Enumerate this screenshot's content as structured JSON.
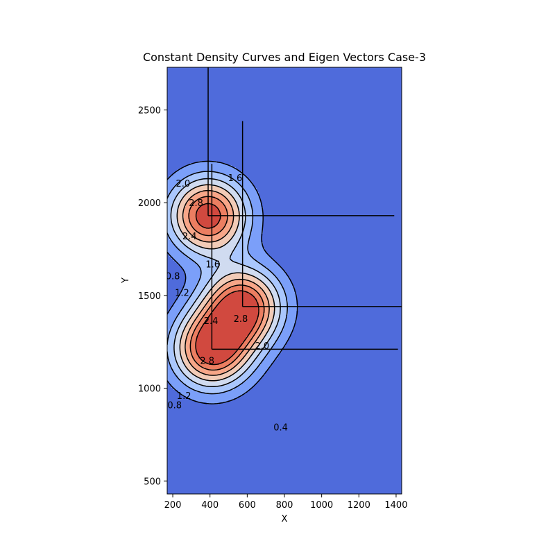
{
  "chart_data": {
    "type": "contour",
    "title": "Constant Density Curves and Eigen Vectors Case-3",
    "xlabel": "X",
    "ylabel": "Y",
    "xlim": [
      170,
      1430
    ],
    "ylim": [
      430,
      2730
    ],
    "x_ticks": [
      200,
      400,
      600,
      800,
      1000,
      1200,
      1400
    ],
    "y_ticks": [
      500,
      1000,
      1500,
      2000,
      2500
    ],
    "grid": false,
    "legend": "none",
    "colormap": "coolwarm",
    "contour_levels": [
      0.4,
      0.8,
      1.2,
      1.6,
      2.0,
      2.4,
      2.8
    ],
    "fill_colors": [
      "#4f6bdb",
      "#7b9ff9",
      "#aac7fd",
      "#d0dbf0",
      "#f2cbb7",
      "#f7a688",
      "#ec7e61",
      "#d1493f"
    ],
    "clusters": [
      {
        "name": "",
        "mean": [
          390,
          1930
        ],
        "sigma": 145,
        "eigen_vectors": [
          [
            0,
            1
          ],
          [
            1,
            0
          ]
        ],
        "eigen_length": 1000
      },
      {
        "name": "",
        "mean": [
          575,
          1440
        ],
        "sigma": 145,
        "eigen_vectors": [
          [
            0,
            1
          ],
          [
            1,
            0
          ]
        ],
        "eigen_length": 1000
      },
      {
        "name": "",
        "mean": [
          410,
          1210
        ],
        "sigma": 145,
        "eigen_vectors": [
          [
            0,
            1
          ],
          [
            1,
            0
          ]
        ],
        "eigen_length": 1000
      }
    ],
    "contour_labels": [
      {
        "text": "2.0",
        "x": 255,
        "y": 2100
      },
      {
        "text": "1.6",
        "x": 535,
        "y": 2130
      },
      {
        "text": "2.8",
        "x": 325,
        "y": 1995
      },
      {
        "text": "2.4",
        "x": 290,
        "y": 1815
      },
      {
        "text": "1.6",
        "x": 415,
        "y": 1665
      },
      {
        "text": "0.8",
        "x": 200,
        "y": 1600
      },
      {
        "text": "1.2",
        "x": 250,
        "y": 1510
      },
      {
        "text": "2.4",
        "x": 405,
        "y": 1360
      },
      {
        "text": "2.8",
        "x": 565,
        "y": 1370
      },
      {
        "text": "2.0",
        "x": 680,
        "y": 1225
      },
      {
        "text": "2.8",
        "x": 385,
        "y": 1145
      },
      {
        "text": "1.2",
        "x": 260,
        "y": 955
      },
      {
        "text": "0.8",
        "x": 210,
        "y": 905
      },
      {
        "text": "0.4",
        "x": 780,
        "y": 785
      }
    ]
  }
}
